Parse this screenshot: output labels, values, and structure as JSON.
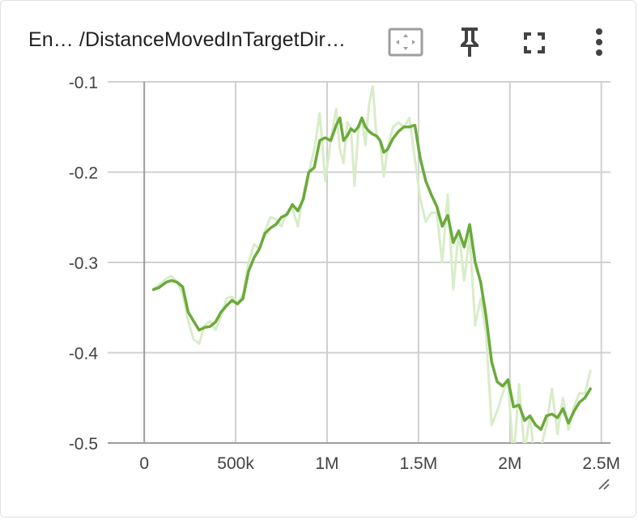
{
  "card": {
    "title": "En… /DistanceMovedInTargetDir…",
    "icons": {
      "fit": "fit-to-data-icon",
      "pin": "pin-icon",
      "fullscreen": "fullscreen-icon",
      "menu": "more-vert-icon"
    }
  },
  "colors": {
    "smoothed": "#6aaa3c",
    "raw": "#d9ecc8",
    "grid": "#d0d0d0",
    "axis": "#9e9e9e",
    "text": "#424242"
  },
  "chart_data": {
    "type": "line",
    "xlabel": "",
    "ylabel": "",
    "xlim": [
      -200000,
      2550000
    ],
    "ylim": [
      -0.5,
      -0.1
    ],
    "x_ticks": [
      0,
      500000,
      1000000,
      1500000,
      2000000,
      2500000
    ],
    "x_tick_labels": [
      "0",
      "500k",
      "1M",
      "1.5M",
      "2M",
      "2.5M"
    ],
    "y_ticks": [
      -0.1,
      -0.2,
      -0.3,
      -0.4,
      -0.5
    ],
    "y_tick_labels": [
      "-0.1",
      "-0.2",
      "-0.3",
      "-0.4",
      "-0.5"
    ],
    "grid": true,
    "series": [
      {
        "role": "raw",
        "x": [
          50000,
          80000,
          120000,
          150000,
          180000,
          210000,
          240000,
          270000,
          300000,
          330000,
          360000,
          390000,
          420000,
          450000,
          480000,
          510000,
          540000,
          570000,
          600000,
          630000,
          660000,
          690000,
          720000,
          750000,
          780000,
          810000,
          840000,
          870000,
          900000,
          930000,
          960000,
          990000,
          1020000,
          1050000,
          1070000,
          1090000,
          1110000,
          1130000,
          1150000,
          1170000,
          1190000,
          1210000,
          1230000,
          1250000,
          1270000,
          1290000,
          1310000,
          1330000,
          1360000,
          1390000,
          1420000,
          1450000,
          1480000,
          1510000,
          1540000,
          1570000,
          1600000,
          1630000,
          1660000,
          1690000,
          1720000,
          1750000,
          1780000,
          1810000,
          1840000,
          1870000,
          1900000,
          1930000,
          1960000,
          1990000,
          2020000,
          2050000,
          2080000,
          2110000,
          2140000,
          2170000,
          2200000,
          2230000,
          2260000,
          2290000,
          2320000,
          2350000,
          2380000,
          2410000,
          2440000
        ],
        "y": [
          -0.33,
          -0.325,
          -0.318,
          -0.315,
          -0.322,
          -0.335,
          -0.365,
          -0.385,
          -0.39,
          -0.37,
          -0.365,
          -0.375,
          -0.36,
          -0.34,
          -0.338,
          -0.345,
          -0.335,
          -0.3,
          -0.28,
          -0.285,
          -0.265,
          -0.25,
          -0.252,
          -0.26,
          -0.245,
          -0.24,
          -0.26,
          -0.225,
          -0.2,
          -0.175,
          -0.135,
          -0.21,
          -0.165,
          -0.13,
          -0.175,
          -0.19,
          -0.145,
          -0.15,
          -0.215,
          -0.155,
          -0.14,
          -0.17,
          -0.125,
          -0.105,
          -0.16,
          -0.165,
          -0.205,
          -0.175,
          -0.15,
          -0.145,
          -0.15,
          -0.14,
          -0.185,
          -0.23,
          -0.255,
          -0.245,
          -0.245,
          -0.3,
          -0.225,
          -0.33,
          -0.265,
          -0.32,
          -0.27,
          -0.37,
          -0.34,
          -0.38,
          -0.48,
          -0.465,
          -0.445,
          -0.43,
          -0.52,
          -0.435,
          -0.51,
          -0.47,
          -0.53,
          -0.505,
          -0.48,
          -0.44,
          -0.49,
          -0.45,
          -0.485,
          -0.46,
          -0.445,
          -0.445,
          -0.42
        ]
      },
      {
        "role": "smoothed",
        "x": [
          50000,
          80000,
          120000,
          150000,
          180000,
          210000,
          240000,
          270000,
          300000,
          330000,
          360000,
          390000,
          420000,
          450000,
          480000,
          510000,
          540000,
          570000,
          600000,
          630000,
          660000,
          690000,
          720000,
          750000,
          780000,
          810000,
          840000,
          870000,
          900000,
          930000,
          960000,
          990000,
          1020000,
          1050000,
          1070000,
          1090000,
          1110000,
          1130000,
          1150000,
          1170000,
          1190000,
          1210000,
          1230000,
          1250000,
          1270000,
          1290000,
          1310000,
          1330000,
          1360000,
          1390000,
          1420000,
          1450000,
          1480000,
          1510000,
          1540000,
          1570000,
          1600000,
          1630000,
          1660000,
          1690000,
          1720000,
          1750000,
          1780000,
          1810000,
          1840000,
          1870000,
          1900000,
          1930000,
          1960000,
          1990000,
          2020000,
          2050000,
          2080000,
          2110000,
          2140000,
          2170000,
          2200000,
          2230000,
          2260000,
          2290000,
          2320000,
          2350000,
          2380000,
          2410000,
          2440000
        ],
        "y": [
          -0.33,
          -0.328,
          -0.322,
          -0.32,
          -0.322,
          -0.327,
          -0.355,
          -0.365,
          -0.375,
          -0.372,
          -0.371,
          -0.366,
          -0.355,
          -0.348,
          -0.342,
          -0.346,
          -0.34,
          -0.31,
          -0.295,
          -0.285,
          -0.268,
          -0.262,
          -0.258,
          -0.25,
          -0.247,
          -0.236,
          -0.243,
          -0.23,
          -0.2,
          -0.195,
          -0.165,
          -0.162,
          -0.165,
          -0.148,
          -0.14,
          -0.165,
          -0.16,
          -0.152,
          -0.155,
          -0.15,
          -0.14,
          -0.15,
          -0.155,
          -0.158,
          -0.16,
          -0.165,
          -0.178,
          -0.175,
          -0.163,
          -0.155,
          -0.15,
          -0.15,
          -0.148,
          -0.185,
          -0.21,
          -0.225,
          -0.238,
          -0.26,
          -0.248,
          -0.278,
          -0.265,
          -0.283,
          -0.258,
          -0.3,
          -0.322,
          -0.36,
          -0.41,
          -0.432,
          -0.437,
          -0.43,
          -0.46,
          -0.458,
          -0.475,
          -0.47,
          -0.48,
          -0.485,
          -0.47,
          -0.468,
          -0.472,
          -0.462,
          -0.478,
          -0.465,
          -0.455,
          -0.45,
          -0.44
        ]
      }
    ]
  }
}
